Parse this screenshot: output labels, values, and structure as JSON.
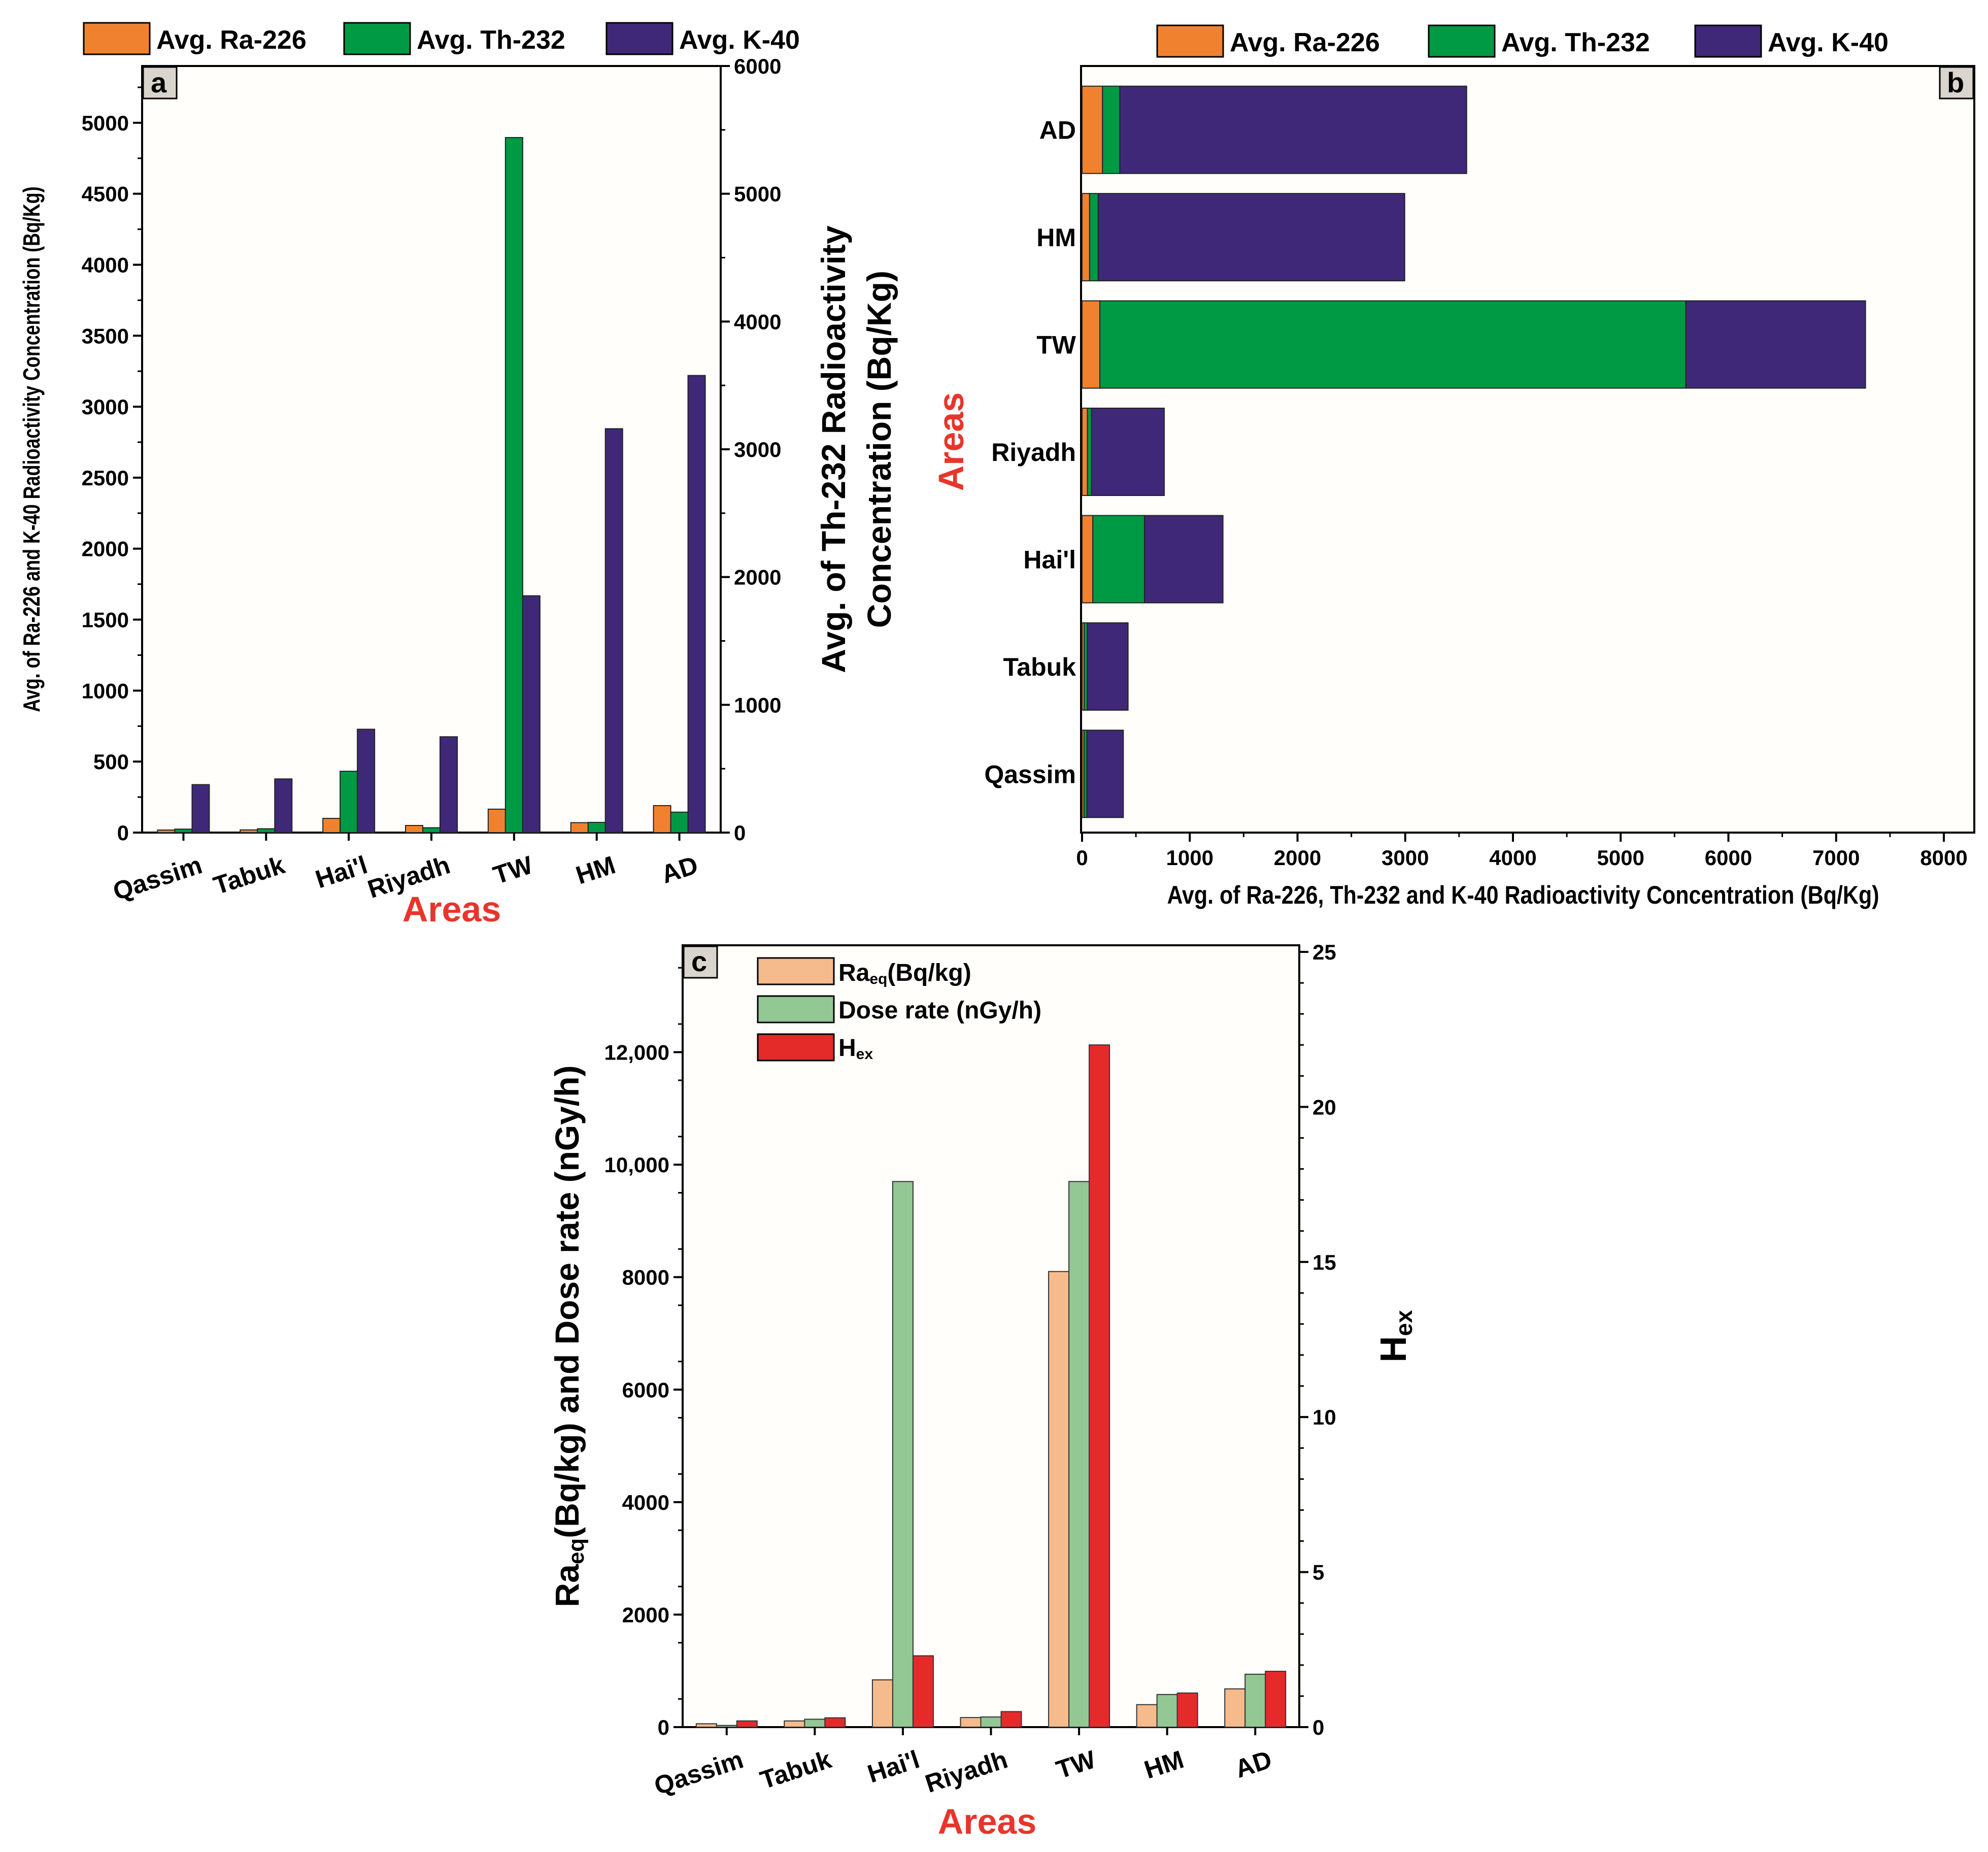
{
  "colors": {
    "ra226": "#f0822f",
    "th232": "#009a44",
    "k40": "#3f2878",
    "raeq": "#f5bb8c",
    "dose": "#93c794",
    "hex": "#e52a2a",
    "areas_title": "#e8352b",
    "TW": "#1a8ac6",
    "HM": "#8a776c",
    "AD": "#a399c9",
    "default_label": "#000000",
    "plot_bg": "#fffefa"
  },
  "legend_ab": [
    "Avg. Ra-226",
    "Avg. Th-232",
    "Avg. K-40"
  ],
  "legend_c": {
    "raeq_main": "Ra",
    "raeq_sub": "eq",
    "raeq_rest": "(Bq/kg)",
    "dose": "Dose rate (nGy/h)",
    "hex_main": "H",
    "hex_sub": "ex"
  },
  "panel_labels": {
    "a": "a",
    "b": "b",
    "c": "c"
  },
  "chart_data": [
    {
      "id": "a",
      "type": "bar",
      "categories": [
        "Qassim",
        "Tabuk",
        "Hai'l",
        "Riyadh",
        "TW",
        "HM",
        "AD"
      ],
      "series": [
        {
          "name": "Avg. Ra-226",
          "axis": "left",
          "values": [
            18,
            19,
            100,
            50,
            165,
            70,
            190
          ]
        },
        {
          "name": "Avg. Th-232",
          "axis": "right",
          "values": [
            27,
            30,
            480,
            38,
            5440,
            80,
            160
          ]
        },
        {
          "name": "Avg. K-40",
          "axis": "left",
          "values": [
            338,
            378,
            728,
            675,
            1668,
            2845,
            3220
          ]
        }
      ],
      "ylabel": "Avg. of Ra-226 and K-40 Radioactivity Concentration (Bq/Kg)",
      "ylabel2_line1": "Avg. of Th-232 Radioactivity",
      "ylabel2_line2": "Concentration (Bq/Kg)",
      "xlabel": "Areas",
      "ylim": [
        0,
        5400
      ],
      "yticks": [
        0,
        500,
        1000,
        1500,
        2000,
        2500,
        3000,
        3500,
        4000,
        4500,
        5000
      ],
      "y2lim": [
        0,
        6000
      ],
      "y2ticks": [
        0,
        1000,
        2000,
        3000,
        4000,
        5000,
        6000
      ]
    },
    {
      "id": "b",
      "type": "bar",
      "orientation": "horizontal-stacked",
      "categories": [
        "Qassim",
        "Tabuk",
        "Hai'l",
        "Riyadh",
        "TW",
        "HM",
        "AD"
      ],
      "series": [
        {
          "name": "Avg. Ra-226",
          "values": [
            18,
            19,
            100,
            50,
            165,
            70,
            190
          ]
        },
        {
          "name": "Avg. Th-232",
          "values": [
            27,
            30,
            480,
            38,
            5440,
            80,
            160
          ]
        },
        {
          "name": "Avg. K-40",
          "values": [
            338,
            378,
            728,
            675,
            1668,
            2845,
            3220
          ]
        }
      ],
      "xlabel": "Avg. of Ra-226, Th-232 and K-40 Radioactivity Concentration (Bq/Kg)",
      "ylabel": "Areas",
      "xlim": [
        0,
        8000
      ],
      "xticks": [
        0,
        1000,
        2000,
        3000,
        4000,
        5000,
        6000,
        7000,
        8000
      ]
    },
    {
      "id": "c",
      "type": "bar",
      "categories": [
        "Qassim",
        "Tabuk",
        "Hai'l",
        "Riyadh",
        "TW",
        "HM",
        "AD"
      ],
      "series": [
        {
          "name": "Raeq(Bq/kg)",
          "axis": "left",
          "values": [
            60,
            110,
            840,
            170,
            8100,
            400,
            680
          ]
        },
        {
          "name": "Dose rate (nGy/h)",
          "axis": "left",
          "values": [
            30,
            140,
            9700,
            180,
            9700,
            580,
            940
          ]
        },
        {
          "name": "Hex",
          "axis": "right",
          "values": [
            0.2,
            0.3,
            2.3,
            0.5,
            22.0,
            1.1,
            1.8
          ]
        }
      ],
      "ylabel_main": "Ra",
      "ylabel_sub": "eq",
      "ylabel_rest": "(Bq/kg) and Dose rate (nGy/h)",
      "y2label_main": "H",
      "y2label_sub": "ex",
      "xlabel": "Areas",
      "ylim": [
        0,
        13900
      ],
      "ytick_labels": [
        {
          "value": 0,
          "label": "0"
        },
        {
          "value": 2000,
          "label": "2000"
        },
        {
          "value": 4000,
          "label": "4000"
        },
        {
          "value": 6000,
          "label": "6000"
        },
        {
          "value": 8000,
          "label": "8000"
        },
        {
          "value": 10000,
          "label": "10,000"
        },
        {
          "value": 12000,
          "label": "12,000"
        }
      ],
      "y2lim": [
        0,
        25
      ],
      "y2ticks": [
        0,
        5,
        10,
        15,
        20,
        25
      ]
    }
  ]
}
